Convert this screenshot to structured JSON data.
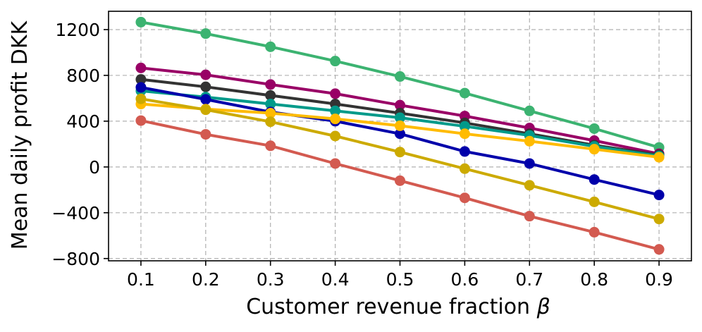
{
  "chart_data": {
    "type": "line",
    "title": "",
    "xlabel": "Customer revenue fraction",
    "xlabel_symbol": "β",
    "ylabel": "Mean daily profit DKK",
    "x": [
      0.1,
      0.2,
      0.3,
      0.4,
      0.5,
      0.6,
      0.7,
      0.8,
      0.9
    ],
    "x_tick_labels": [
      "0.1",
      "0.2",
      "0.3",
      "0.4",
      "0.5",
      "0.6",
      "0.7",
      "0.8",
      "0.9"
    ],
    "y_ticks": [
      1200,
      800,
      400,
      0,
      -400,
      -800
    ],
    "y_tick_labels": [
      "1200",
      "800",
      "400",
      "0",
      "−400",
      "−800"
    ],
    "xlim": [
      0.05,
      0.95
    ],
    "ylim": [
      -820,
      1360
    ],
    "grid": true,
    "series": [
      {
        "name": "series-green",
        "color": "#3cb371",
        "values": [
          1265,
          1165,
          1050,
          925,
          790,
          645,
          490,
          335,
          170
        ]
      },
      {
        "name": "series-magenta",
        "color": "#990066",
        "values": [
          865,
          805,
          720,
          640,
          540,
          445,
          340,
          230,
          115
        ]
      },
      {
        "name": "series-dark-gray",
        "color": "#333333",
        "values": [
          765,
          700,
          625,
          550,
          470,
          385,
          290,
          190,
          105
        ]
      },
      {
        "name": "series-teal",
        "color": "#009a8a",
        "values": [
          665,
          610,
          550,
          490,
          430,
          355,
          275,
          180,
          95
        ]
      },
      {
        "name": "series-blue",
        "color": "#0000aa",
        "values": [
          695,
          590,
          480,
          400,
          290,
          135,
          30,
          -110,
          -245
        ]
      },
      {
        "name": "series-orange",
        "color": "#ffbb00",
        "values": [
          550,
          505,
          470,
          420,
          360,
          290,
          225,
          155,
          85
        ]
      },
      {
        "name": "series-olive",
        "color": "#ccaa00",
        "values": [
          595,
          500,
          395,
          270,
          130,
          -15,
          -160,
          -305,
          -455
        ]
      },
      {
        "name": "series-red",
        "color": "#d35a50",
        "values": [
          405,
          285,
          185,
          30,
          -120,
          -270,
          -430,
          -570,
          -720
        ]
      }
    ]
  }
}
